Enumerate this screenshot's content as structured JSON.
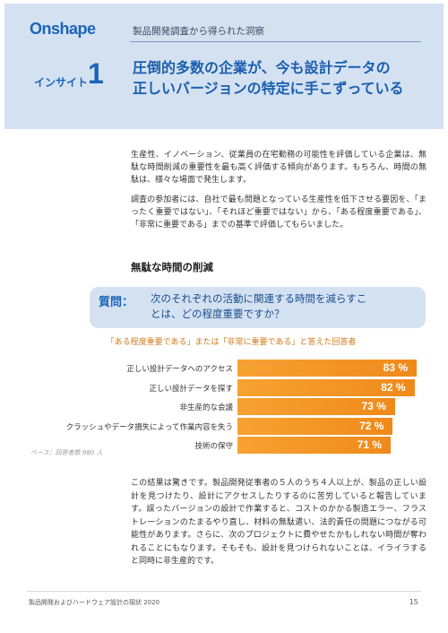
{
  "header": {
    "logo": "Onshape",
    "kicker": "製品開発調査から得られた洞察",
    "insight_label": "インサイト",
    "insight_number": "1",
    "headline_lines": [
      "圧倒的多数の企業が、今も設計データの",
      "正しいバージョンの特定に手こずっている"
    ],
    "bg_color": "#d4e1f1",
    "accent_color": "#1b65b8"
  },
  "intro": {
    "p1": "生産性、イノベーション、従業員の在宅勤務の可能性を評価している企業は、無駄な時間削減の重要性を最も高く評価する傾向があります。もちろん、時間の無駄は、様々な場面で発生します。",
    "p2": "調査の参加者には、自社で最も問題となっている生産性を低下させる要因を、「まったく重要ではない」、「それほど重要ではない」から、「ある程度重要である」、「非常に重要である」までの基準で評価してもらいました。"
  },
  "section_title": "無駄な時間の削減",
  "question": {
    "label": "質問：",
    "lines": [
      "次のそれぞれの活動に関連する時間を減らすこ",
      "とは、どの程度重要ですか？"
    ]
  },
  "chart_data": {
    "type": "bar",
    "orientation": "horizontal",
    "title": "「ある程度重要である」または「非常に重要である」と答えた回答者",
    "categories": [
      "正しい設計データへのアクセス",
      "正しい設計データを探す",
      "非生産的な会議",
      "クラッシュやデータ損失によって作業内容を失う",
      "技術の保守"
    ],
    "values": [
      83,
      82,
      73,
      72,
      71
    ],
    "value_labels": [
      "83 %",
      "82 %",
      "73 %",
      "72 %",
      "71 %"
    ],
    "unit": "%",
    "bar_color": "#f39521",
    "base_note": "ベース：回答者数 980 人"
  },
  "conclusion": "この結果は驚きです。製品開発従事者の５人のうち４人以上が、製品の正しい設計を見つけたり、設計にアクセスしたりするのに苦労していると報告しています。誤ったバージョンの設計で作業すると、コストのかかる製造エラー、フラストレーションのたまるやり直し、材料の無駄遣い、法的責任の問題につながる可能性があります。さらに、次のプロジェクトに費やせたかもしれない時間が奪われることにもなります。そもそも、設計を見つけられないことは、イライラすると同時に非生産的です。",
  "footer": {
    "title": "製品開発およびハードウェア設計の現状 2020",
    "page": "15"
  }
}
